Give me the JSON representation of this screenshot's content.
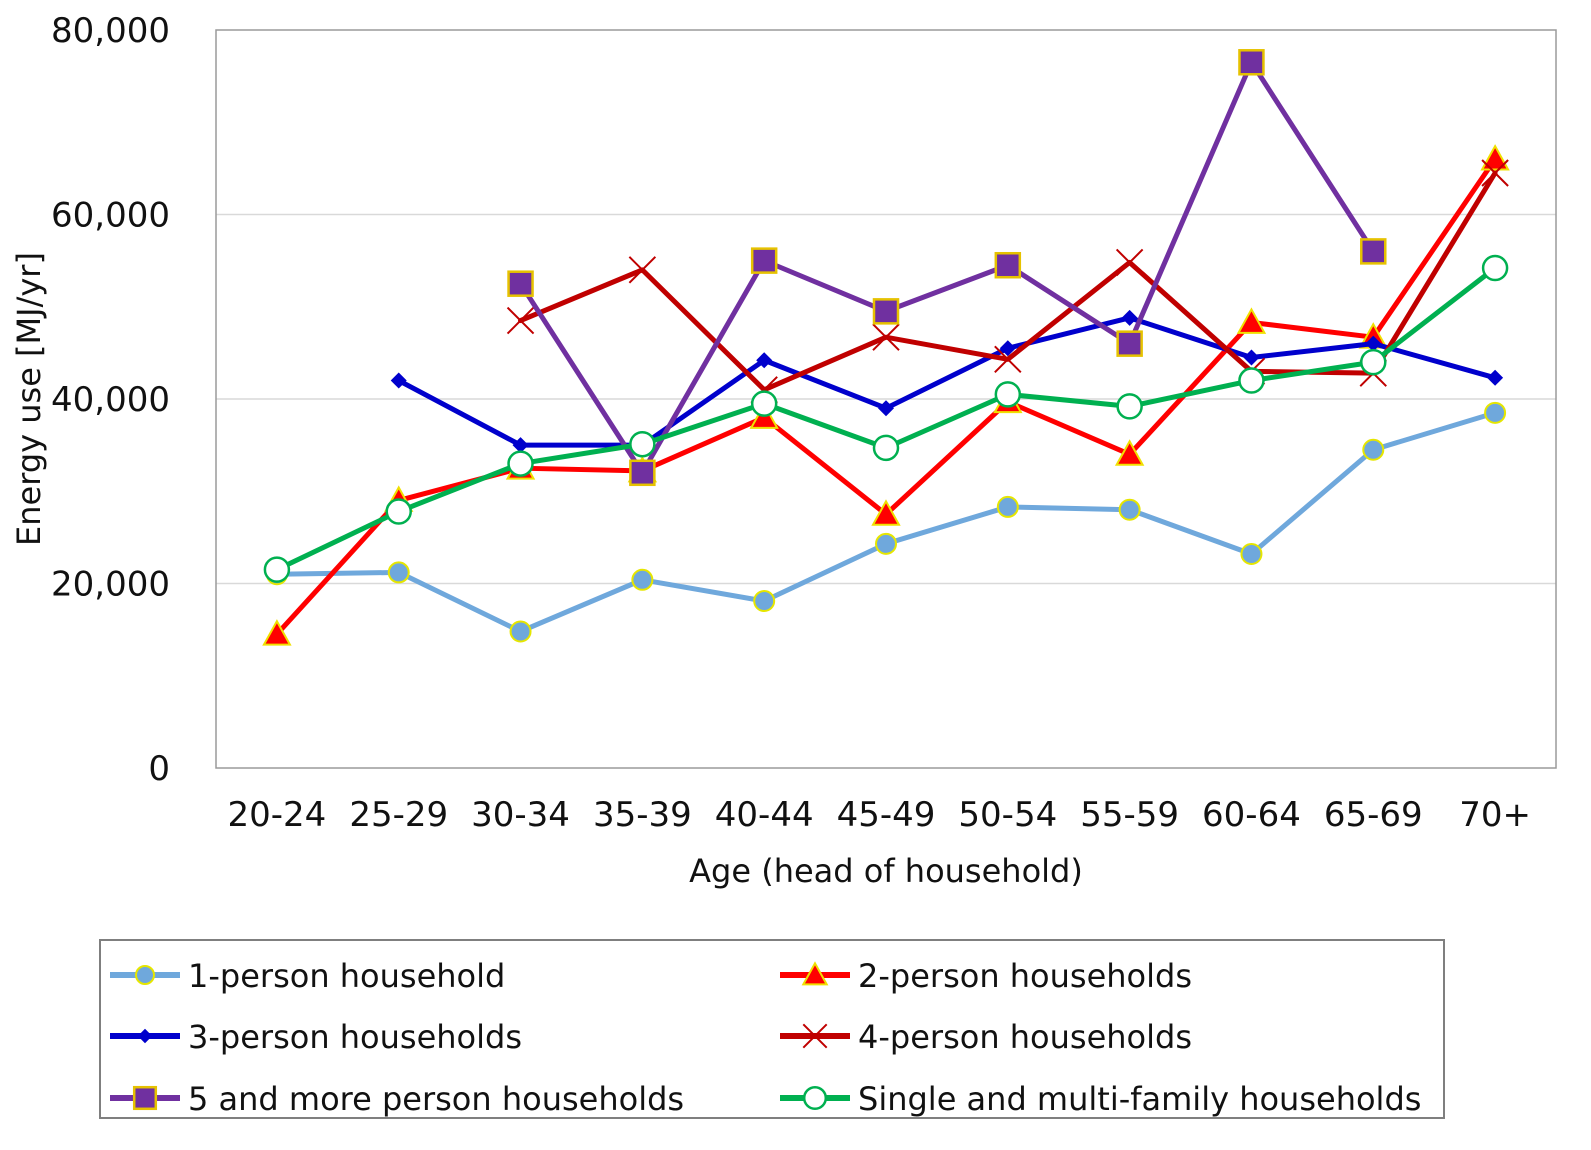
{
  "chart_data": {
    "type": "line",
    "xlabel": "Age (head of household)",
    "ylabel": "Energy use [MJ/yr]",
    "ylim": [
      0,
      80000
    ],
    "yticks": [
      0,
      20000,
      40000,
      60000,
      80000
    ],
    "ytick_labels": [
      "0",
      "20,000",
      "40,000",
      "60,000",
      "80,000"
    ],
    "grid": true,
    "legend_position": "bottom",
    "categories": [
      "20-24",
      "25-29",
      "30-34",
      "35-39",
      "40-44",
      "45-49",
      "50-54",
      "55-59",
      "60-64",
      "65-69",
      "70+"
    ],
    "series": [
      {
        "name": "1-person household",
        "color": "#6fa8dc",
        "marker": "circle",
        "values": [
          21000,
          21200,
          14800,
          20400,
          18100,
          24300,
          28300,
          28000,
          23200,
          34500,
          38500
        ]
      },
      {
        "name": "2-person households",
        "color": "#ff0000",
        "marker": "triangle",
        "values": [
          14500,
          29000,
          32500,
          32200,
          38000,
          27500,
          39700,
          34000,
          48300,
          46700,
          66000
        ]
      },
      {
        "name": "3-person households",
        "color": "#0000cc",
        "marker": "diamond",
        "values": [
          null,
          42000,
          35000,
          35000,
          44200,
          39000,
          45500,
          48800,
          44500,
          46000,
          42300
        ]
      },
      {
        "name": "4-person households",
        "color": "#c00000",
        "marker": "x",
        "values": [
          null,
          null,
          48500,
          54000,
          41000,
          46700,
          44300,
          54800,
          43000,
          42800,
          64500
        ]
      },
      {
        "name": "5 and more person households",
        "color": "#7030a0",
        "marker": "square",
        "values": [
          null,
          null,
          52500,
          32000,
          55000,
          49500,
          54500,
          46000,
          76500,
          56000,
          null
        ]
      },
      {
        "name": "Single and multi-family households",
        "color": "#00b050",
        "marker": "open-circle",
        "values": [
          21500,
          27800,
          33000,
          35100,
          39500,
          34700,
          40500,
          39200,
          42000,
          44000,
          54200
        ]
      }
    ]
  }
}
